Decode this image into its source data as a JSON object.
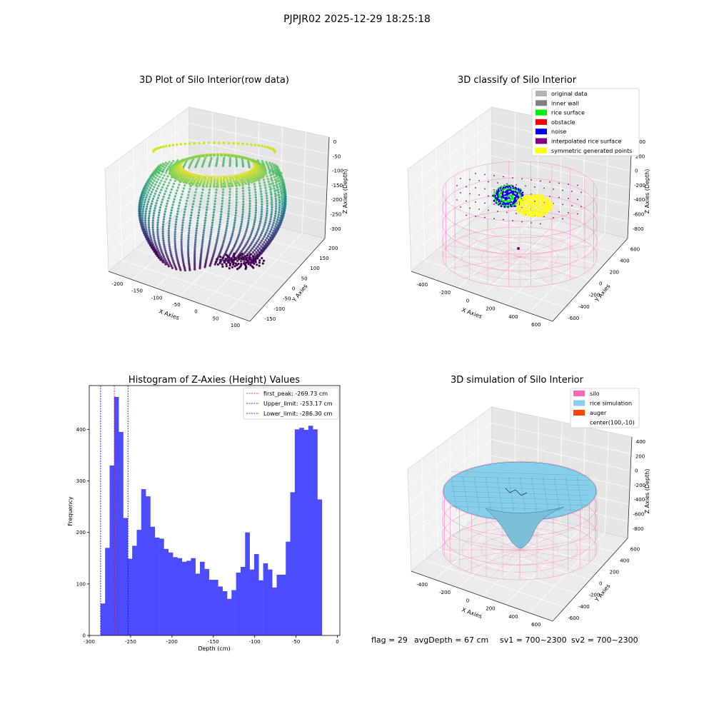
{
  "figure_title": "PJPJR02 2025-12-29 18:25:18",
  "status_line": {
    "flag": "flag = 29",
    "avg_depth": "avgDepth = 67 cm",
    "sv1": "sv1 = 700~2300",
    "sv2": "sv2 = 700~2300"
  },
  "colors": {
    "hist_bar": "#4c4cff",
    "first_peak_line": "#ff0000",
    "limit_line": "#0000ff",
    "original_data": "#b3b3b3",
    "inner_wall": "#808080",
    "rice_surface": "#00ee00",
    "obstacle": "#ff0000",
    "noise": "#0000ee",
    "interpolated_rice_surface": "#800080",
    "symmetric_generated_points": "#ffff00",
    "silo": "#ff69b4",
    "rice_simulation": "#87ceeb",
    "auger": "#ff4500"
  },
  "chart_data": [
    {
      "type": "scatter",
      "title": "3D Plot of Silo Interior(row data)",
      "xlabel": "X Axies",
      "ylabel": "Y Axies",
      "zlabel": "Z Axies (Depth)",
      "x_ticks": [
        "-200",
        "-150",
        "-100",
        "-50",
        "0",
        "50",
        "100"
      ],
      "y_ticks": [
        "-150",
        "-100",
        "-50",
        "0",
        "50",
        "100",
        "150",
        "200"
      ],
      "z_ticks": [
        "0",
        "-50",
        "-100",
        "-150",
        "-200",
        "-250",
        "-300"
      ],
      "xlim": [
        -220,
        120
      ],
      "ylim": [
        -160,
        210
      ],
      "zlim": [
        -300,
        0
      ]
    },
    {
      "type": "scatter",
      "title": "3D classify of Silo Interior",
      "xlabel": "X Axies",
      "ylabel": "Y Axies",
      "zlabel": "Z Axies (Depth)",
      "x_ticks": [
        "-400",
        "-200",
        "0",
        "200",
        "400",
        "600"
      ],
      "y_ticks": [
        "-600",
        "-400",
        "-200",
        "0",
        "200",
        "400",
        "600"
      ],
      "z_ticks": [
        "400",
        "200",
        "0",
        "-200",
        "-400",
        "-600",
        "-800"
      ],
      "legend_position": "top-right",
      "legend": [
        {
          "label": "original data",
          "color": "#b3b3b3"
        },
        {
          "label": "inner wall",
          "color": "#808080"
        },
        {
          "label": "rice surface",
          "color": "#00ee00"
        },
        {
          "label": "obstacle",
          "color": "#ff0000"
        },
        {
          "label": "noise",
          "color": "#0000ee"
        },
        {
          "label": "interpolated rice surface",
          "color": "#800080"
        },
        {
          "label": "symmetric generated points",
          "color": "#ffff00"
        }
      ]
    },
    {
      "type": "bar",
      "title": "Histogram of Z-Axies (Height) Values",
      "xlabel": "Depth (cm)",
      "ylabel": "Frequency",
      "xlim": [
        -300,
        3
      ],
      "ylim": [
        0,
        485
      ],
      "x_ticks": [
        -300,
        -250,
        -200,
        -150,
        -100,
        -50,
        0
      ],
      "y_ticks": [
        0,
        100,
        200,
        300,
        400
      ],
      "bin_start": -286.3,
      "bin_width": 5.46,
      "values": [
        62,
        170,
        330,
        463,
        395,
        228,
        149,
        174,
        205,
        284,
        270,
        211,
        190,
        188,
        168,
        161,
        152,
        150,
        143,
        145,
        150,
        120,
        143,
        129,
        108,
        108,
        95,
        86,
        71,
        88,
        122,
        133,
        200,
        128,
        158,
        107,
        140,
        128,
        93,
        118,
        118,
        182,
        278,
        400,
        403,
        399,
        407,
        400,
        264
      ],
      "vlines": [
        {
          "label": "first_peak: -269.73 cm",
          "x": -269.73,
          "color": "#ff0000"
        },
        {
          "label": "Upper_limit: -253.17 cm",
          "x": -253.17,
          "color": "#0000ff"
        },
        {
          "label": "Lower_limit: -286.30 cm",
          "x": -286.3,
          "color": "#0000ff"
        }
      ],
      "legend_position": "top-right"
    },
    {
      "type": "scatter",
      "title": "3D simulation of Silo Interior",
      "xlabel": "X Axies",
      "ylabel": "Y Axies",
      "zlabel": "Z Axies (Depth)",
      "x_ticks": [
        "-400",
        "-200",
        "0",
        "200",
        "400",
        "600"
      ],
      "y_ticks": [
        "-600",
        "-400",
        "-200",
        "0",
        "200",
        "400",
        "600"
      ],
      "z_ticks": [
        "400",
        "200",
        "0",
        "-200",
        "-400",
        "-600",
        "-800"
      ],
      "legend_position": "top-right",
      "legend": [
        {
          "label": "silo",
          "color": "#ff69b4"
        },
        {
          "label": "rice simulation",
          "color": "#87ceeb"
        },
        {
          "label": "auger",
          "color": "#ff4500"
        },
        {
          "label": "center(100,-10)",
          "color": ""
        }
      ]
    }
  ]
}
